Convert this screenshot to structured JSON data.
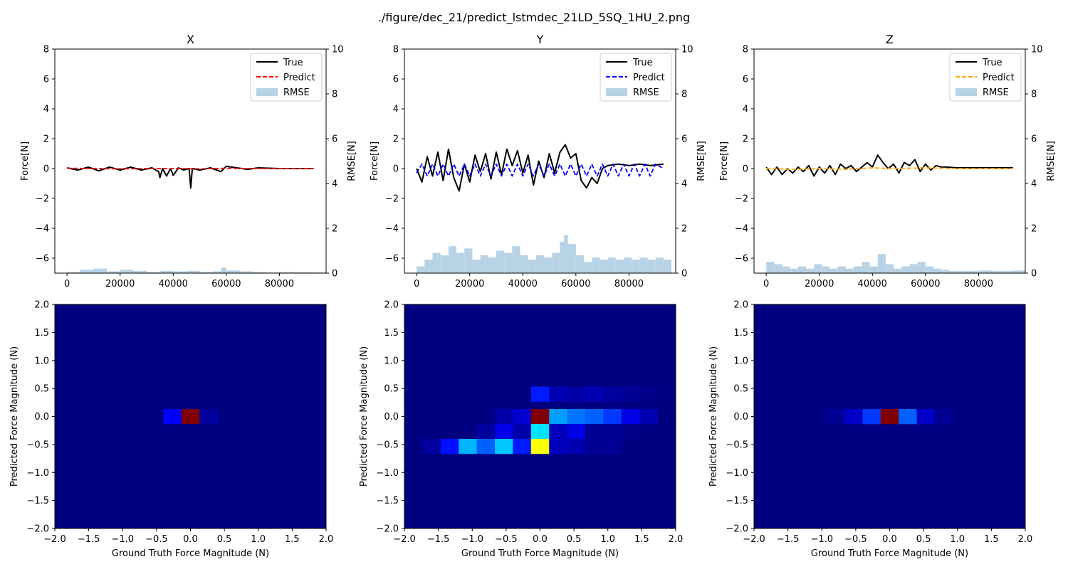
{
  "figure": {
    "suptitle": "./figure/dec_21/predict_lstmdec_21LD_5SQ_1HU_2.png"
  },
  "colors": {
    "true_line": "#000000",
    "rmse_fill": "#b9d3e6"
  },
  "chart_data": [
    {
      "type": "line",
      "title": "X",
      "xlabel": "",
      "ylabel": "Force[N]",
      "y2label": "RMSE[N]",
      "xlim": [
        -4600,
        97600
      ],
      "ylim": [
        -7,
        8
      ],
      "y2lim": [
        0,
        10
      ],
      "xticks": [
        0,
        20000,
        40000,
        60000,
        80000
      ],
      "yticks": [
        -6,
        -4,
        -2,
        0,
        2,
        4,
        6,
        8
      ],
      "y2ticks": [
        0,
        2,
        4,
        6,
        8,
        10
      ],
      "legend": {
        "position": "top-right",
        "entries": [
          "True",
          "Predict",
          "RMSE"
        ]
      },
      "predict_color": "#ff0000",
      "series": [
        {
          "name": "True",
          "style": "solid",
          "x": [
            0,
            4000,
            8000,
            12000,
            16000,
            20000,
            24000,
            28000,
            32000,
            34500,
            35000,
            36000,
            37500,
            39000,
            40000,
            42000,
            44000,
            46000,
            46600,
            47200,
            50000,
            54000,
            58000,
            60000,
            64000,
            68000,
            72000,
            80000,
            93000
          ],
          "y": [
            0.05,
            -0.1,
            0.1,
            -0.15,
            0.1,
            -0.1,
            0.1,
            -0.1,
            0.05,
            -0.2,
            -0.6,
            0.0,
            -0.5,
            0.0,
            -0.45,
            0.05,
            -0.1,
            0.0,
            -1.3,
            0.0,
            -0.1,
            0.05,
            -0.2,
            0.15,
            0.05,
            -0.05,
            0.05,
            0.0,
            0.0
          ]
        },
        {
          "name": "Predict",
          "style": "dashed",
          "x": [
            0,
            10000,
            20000,
            30000,
            40000,
            50000,
            60000,
            70000,
            80000,
            93000
          ],
          "y": [
            0.02,
            0.0,
            -0.02,
            0.0,
            0.0,
            -0.02,
            0.02,
            0.0,
            0.0,
            0.0
          ]
        }
      ],
      "rmse": {
        "name": "RMSE",
        "x": [
          0,
          5000,
          10000,
          15000,
          20000,
          25000,
          30000,
          35000,
          40000,
          45000,
          50000,
          55000,
          58000,
          60000,
          65000,
          70000,
          75000,
          80000,
          85000,
          93000
        ],
        "values": [
          0.05,
          0.15,
          0.2,
          0.08,
          0.15,
          0.1,
          0.05,
          0.1,
          0.08,
          0.1,
          0.05,
          0.08,
          0.25,
          0.12,
          0.08,
          0.05,
          0.03,
          0.05,
          0.04,
          0.03
        ]
      }
    },
    {
      "type": "line",
      "title": "Y",
      "xlabel": "",
      "ylabel": "Force[N]",
      "y2label": "RMSE[N]",
      "xlim": [
        -4600,
        97600
      ],
      "ylim": [
        -7,
        8
      ],
      "y2lim": [
        0,
        10
      ],
      "xticks": [
        0,
        20000,
        40000,
        60000,
        80000
      ],
      "yticks": [
        -6,
        -4,
        -2,
        0,
        2,
        4,
        6,
        8
      ],
      "y2ticks": [
        0,
        2,
        4,
        6,
        8,
        10
      ],
      "legend": {
        "position": "top-right",
        "entries": [
          "True",
          "Predict",
          "RMSE"
        ]
      },
      "predict_color": "#0000ff",
      "series": [
        {
          "name": "True",
          "style": "solid",
          "x": [
            0,
            2000,
            4000,
            6000,
            8000,
            10000,
            12000,
            14000,
            16000,
            18000,
            20000,
            22000,
            24000,
            26000,
            28000,
            30000,
            32000,
            34000,
            36000,
            38000,
            40000,
            42000,
            44000,
            46000,
            48000,
            50000,
            52000,
            54000,
            56000,
            58000,
            60000,
            62000,
            64000,
            66000,
            68000,
            70000,
            72000,
            76000,
            80000,
            84000,
            88000,
            93000
          ],
          "y": [
            0.0,
            -0.9,
            0.8,
            -0.5,
            1.1,
            -0.8,
            1.3,
            -0.6,
            -1.5,
            0.3,
            -0.9,
            0.9,
            -0.2,
            1.0,
            -0.7,
            1.1,
            -0.4,
            1.3,
            0.2,
            1.2,
            -0.3,
            0.9,
            -1.1,
            0.5,
            -0.6,
            1.0,
            -0.3,
            1.1,
            1.6,
            0.7,
            1.0,
            -0.8,
            -1.3,
            -0.6,
            -1.0,
            0.0,
            0.2,
            0.3,
            0.2,
            0.3,
            0.2,
            0.3
          ]
        },
        {
          "name": "Predict",
          "style": "dashed",
          "x": [
            0,
            2000,
            4000,
            6000,
            8000,
            10000,
            12000,
            14000,
            16000,
            18000,
            20000,
            22000,
            24000,
            26000,
            28000,
            30000,
            32000,
            34000,
            36000,
            38000,
            40000,
            42000,
            44000,
            46000,
            48000,
            50000,
            52000,
            54000,
            56000,
            58000,
            60000,
            62000,
            64000,
            66000,
            68000,
            70000,
            72000,
            74000,
            76000,
            78000,
            80000,
            82000,
            84000,
            86000,
            88000,
            90000,
            93000
          ],
          "y": [
            -0.3,
            0.3,
            -0.5,
            0.3,
            -0.5,
            0.3,
            -0.5,
            0.3,
            -0.5,
            0.3,
            -0.5,
            0.3,
            -0.5,
            0.3,
            -0.5,
            0.3,
            -0.5,
            0.3,
            -0.5,
            0.3,
            -0.5,
            0.3,
            -0.5,
            0.3,
            -0.5,
            0.3,
            -0.5,
            0.3,
            -0.5,
            0.3,
            -0.5,
            0.3,
            -0.5,
            0.3,
            -0.5,
            0.3,
            -0.5,
            0.3,
            -0.5,
            0.3,
            -0.5,
            0.3,
            -0.5,
            0.3,
            -0.5,
            0.3,
            0.0
          ]
        }
      ],
      "rmse": {
        "name": "RMSE",
        "x": [
          0,
          3000,
          6000,
          9000,
          12000,
          15000,
          18000,
          21000,
          24000,
          27000,
          30000,
          33000,
          36000,
          39000,
          42000,
          45000,
          48000,
          51000,
          54000,
          55500,
          57000,
          60000,
          63000,
          66000,
          69000,
          72000,
          75000,
          78000,
          81000,
          84000,
          87000,
          90000,
          93000
        ],
        "values": [
          0.3,
          0.6,
          0.9,
          0.8,
          1.2,
          0.9,
          1.1,
          0.6,
          0.8,
          0.7,
          1.0,
          0.9,
          1.2,
          0.8,
          0.6,
          0.8,
          0.7,
          0.9,
          1.4,
          1.7,
          1.3,
          0.8,
          0.5,
          0.7,
          0.6,
          0.7,
          0.6,
          0.7,
          0.6,
          0.7,
          0.6,
          0.7,
          0.6
        ]
      }
    },
    {
      "type": "line",
      "title": "Z",
      "xlabel": "",
      "ylabel": "Force[N]",
      "y2label": "RMSE[N]",
      "xlim": [
        -4600,
        97600
      ],
      "ylim": [
        -7,
        8
      ],
      "y2lim": [
        0,
        10
      ],
      "xticks": [
        0,
        20000,
        40000,
        60000,
        80000
      ],
      "yticks": [
        -6,
        -4,
        -2,
        0,
        2,
        4,
        6,
        8
      ],
      "y2ticks": [
        0,
        2,
        4,
        6,
        8,
        10
      ],
      "legend": {
        "position": "top-right",
        "entries": [
          "True",
          "Predict",
          "RMSE"
        ]
      },
      "predict_color": "#ffa500",
      "series": [
        {
          "name": "True",
          "style": "solid",
          "x": [
            0,
            2000,
            4000,
            6000,
            8000,
            10000,
            12000,
            14000,
            16000,
            18000,
            20000,
            22000,
            24000,
            26000,
            28000,
            30000,
            32000,
            34000,
            36000,
            38000,
            40000,
            42000,
            44000,
            46000,
            48000,
            50000,
            52000,
            54000,
            56000,
            58000,
            60000,
            62000,
            64000,
            66000,
            68000,
            72000,
            80000,
            93000
          ],
          "y": [
            0.1,
            -0.4,
            0.1,
            -0.4,
            0.0,
            -0.3,
            0.1,
            -0.2,
            0.2,
            -0.5,
            0.1,
            -0.3,
            0.2,
            -0.4,
            0.3,
            0.0,
            0.2,
            -0.2,
            0.1,
            0.4,
            0.1,
            0.9,
            0.4,
            0.0,
            0.3,
            -0.3,
            0.4,
            0.2,
            0.6,
            -0.2,
            0.3,
            -0.1,
            0.2,
            0.1,
            0.1,
            0.05,
            0.05,
            0.05
          ]
        },
        {
          "name": "Predict",
          "style": "dashed",
          "x": [
            0,
            10000,
            20000,
            30000,
            40000,
            50000,
            60000,
            70000,
            80000,
            93000
          ],
          "y": [
            0.0,
            -0.05,
            0.0,
            -0.05,
            0.05,
            0.0,
            0.05,
            0.0,
            0.0,
            0.0
          ]
        }
      ],
      "rmse": {
        "name": "RMSE",
        "x": [
          0,
          3000,
          6000,
          9000,
          12000,
          15000,
          18000,
          21000,
          24000,
          27000,
          30000,
          33000,
          36000,
          39000,
          42000,
          45000,
          48000,
          51000,
          54000,
          57000,
          60000,
          63000,
          66000,
          69000,
          72000,
          75000,
          80000,
          85000,
          93000
        ],
        "values": [
          0.5,
          0.4,
          0.3,
          0.2,
          0.3,
          0.2,
          0.4,
          0.3,
          0.2,
          0.3,
          0.2,
          0.3,
          0.5,
          0.3,
          0.85,
          0.4,
          0.2,
          0.3,
          0.4,
          0.5,
          0.3,
          0.2,
          0.15,
          0.1,
          0.1,
          0.1,
          0.12,
          0.1,
          0.12
        ]
      }
    },
    {
      "type": "heatmap",
      "title": "",
      "xlabel": "Ground Truth Force Magnitude (N)",
      "ylabel": "Predicted Force Magnitude (N)",
      "xlim": [
        -2,
        2
      ],
      "ylim": [
        -2,
        2
      ],
      "xticks": [
        -2.0,
        -1.5,
        -1.0,
        -0.5,
        0.0,
        0.5,
        1.0,
        1.5,
        2.0
      ],
      "yticks": [
        -2.0,
        -1.5,
        -1.0,
        -0.5,
        0.0,
        0.5,
        1.0,
        1.5,
        2.0
      ],
      "colormap": "jet",
      "bins": 15,
      "cells": [
        {
          "x": -0.267,
          "y": 0.0,
          "v": 0.12
        },
        {
          "x": 0.0,
          "y": 0.0,
          "v": 1.0
        },
        {
          "x": 0.267,
          "y": 0.0,
          "v": 0.03
        }
      ]
    },
    {
      "type": "heatmap",
      "title": "",
      "xlabel": "Ground Truth Force Magnitude (N)",
      "ylabel": "Predicted Force Magnitude (N)",
      "xlim": [
        -2,
        2
      ],
      "ylim": [
        -2,
        2
      ],
      "xticks": [
        -2.0,
        -1.5,
        -1.0,
        -0.5,
        0.0,
        0.5,
        1.0,
        1.5,
        2.0
      ],
      "yticks": [
        -2.0,
        -1.5,
        -1.0,
        -0.5,
        0.0,
        0.5,
        1.0,
        1.5,
        2.0
      ],
      "colormap": "jet",
      "bins": 15,
      "cells": [
        {
          "x": 0.0,
          "y": 0.4,
          "v": 0.15
        },
        {
          "x": 0.267,
          "y": 0.4,
          "v": 0.05
        },
        {
          "x": 0.533,
          "y": 0.4,
          "v": 0.04
        },
        {
          "x": 0.8,
          "y": 0.4,
          "v": 0.05
        },
        {
          "x": 1.067,
          "y": 0.4,
          "v": 0.03
        },
        {
          "x": 1.333,
          "y": 0.4,
          "v": 0.02
        },
        {
          "x": 1.6,
          "y": 0.4,
          "v": 0.01
        },
        {
          "x": -0.533,
          "y": 0.0,
          "v": 0.04
        },
        {
          "x": -0.267,
          "y": 0.0,
          "v": 0.08
        },
        {
          "x": 0.0,
          "y": 0.0,
          "v": 1.0
        },
        {
          "x": 0.267,
          "y": 0.0,
          "v": 0.28
        },
        {
          "x": 0.533,
          "y": 0.0,
          "v": 0.24
        },
        {
          "x": 0.8,
          "y": 0.0,
          "v": 0.22
        },
        {
          "x": 1.067,
          "y": 0.0,
          "v": 0.18
        },
        {
          "x": 1.333,
          "y": 0.0,
          "v": 0.1
        },
        {
          "x": 1.6,
          "y": 0.0,
          "v": 0.05
        },
        {
          "x": -0.8,
          "y": -0.267,
          "v": 0.03
        },
        {
          "x": -0.533,
          "y": -0.267,
          "v": 0.1
        },
        {
          "x": -0.267,
          "y": -0.267,
          "v": 0.04
        },
        {
          "x": 0.0,
          "y": -0.267,
          "v": 0.35
        },
        {
          "x": 0.267,
          "y": -0.267,
          "v": 0.06
        },
        {
          "x": 0.533,
          "y": -0.267,
          "v": 0.1
        },
        {
          "x": 0.8,
          "y": -0.267,
          "v": 0.02
        },
        {
          "x": 1.067,
          "y": -0.267,
          "v": 0.02
        },
        {
          "x": 1.333,
          "y": -0.267,
          "v": 0.01
        },
        {
          "x": -1.6,
          "y": -0.533,
          "v": 0.03
        },
        {
          "x": -1.333,
          "y": -0.533,
          "v": 0.14
        },
        {
          "x": -1.067,
          "y": -0.533,
          "v": 0.3
        },
        {
          "x": -0.8,
          "y": -0.533,
          "v": 0.22
        },
        {
          "x": -0.533,
          "y": -0.533,
          "v": 0.32
        },
        {
          "x": -0.267,
          "y": -0.533,
          "v": 0.15
        },
        {
          "x": 0.0,
          "y": -0.533,
          "v": 0.62
        },
        {
          "x": 0.267,
          "y": -0.533,
          "v": 0.06
        },
        {
          "x": 0.533,
          "y": -0.533,
          "v": 0.05
        },
        {
          "x": 0.8,
          "y": -0.533,
          "v": 0.02
        },
        {
          "x": 1.067,
          "y": -0.533,
          "v": 0.02
        }
      ]
    },
    {
      "type": "heatmap",
      "title": "",
      "xlabel": "Ground Truth Force Magnitude (N)",
      "ylabel": "Predicted Force Magnitude (N)",
      "xlim": [
        -2,
        2
      ],
      "ylim": [
        -2,
        2
      ],
      "xticks": [
        -2.0,
        -1.5,
        -1.0,
        -0.5,
        0.0,
        0.5,
        1.0,
        1.5,
        2.0
      ],
      "yticks": [
        -2.0,
        -1.5,
        -1.0,
        -0.5,
        0.0,
        0.5,
        1.0,
        1.5,
        2.0
      ],
      "colormap": "jet",
      "bins": 15,
      "cells": [
        {
          "x": -0.8,
          "y": 0.0,
          "v": 0.02
        },
        {
          "x": -0.533,
          "y": 0.0,
          "v": 0.07
        },
        {
          "x": -0.267,
          "y": 0.0,
          "v": 0.18
        },
        {
          "x": 0.0,
          "y": 0.0,
          "v": 1.0
        },
        {
          "x": 0.267,
          "y": 0.0,
          "v": 0.22
        },
        {
          "x": 0.533,
          "y": 0.0,
          "v": 0.07
        },
        {
          "x": 0.8,
          "y": 0.0,
          "v": 0.02
        }
      ]
    }
  ]
}
